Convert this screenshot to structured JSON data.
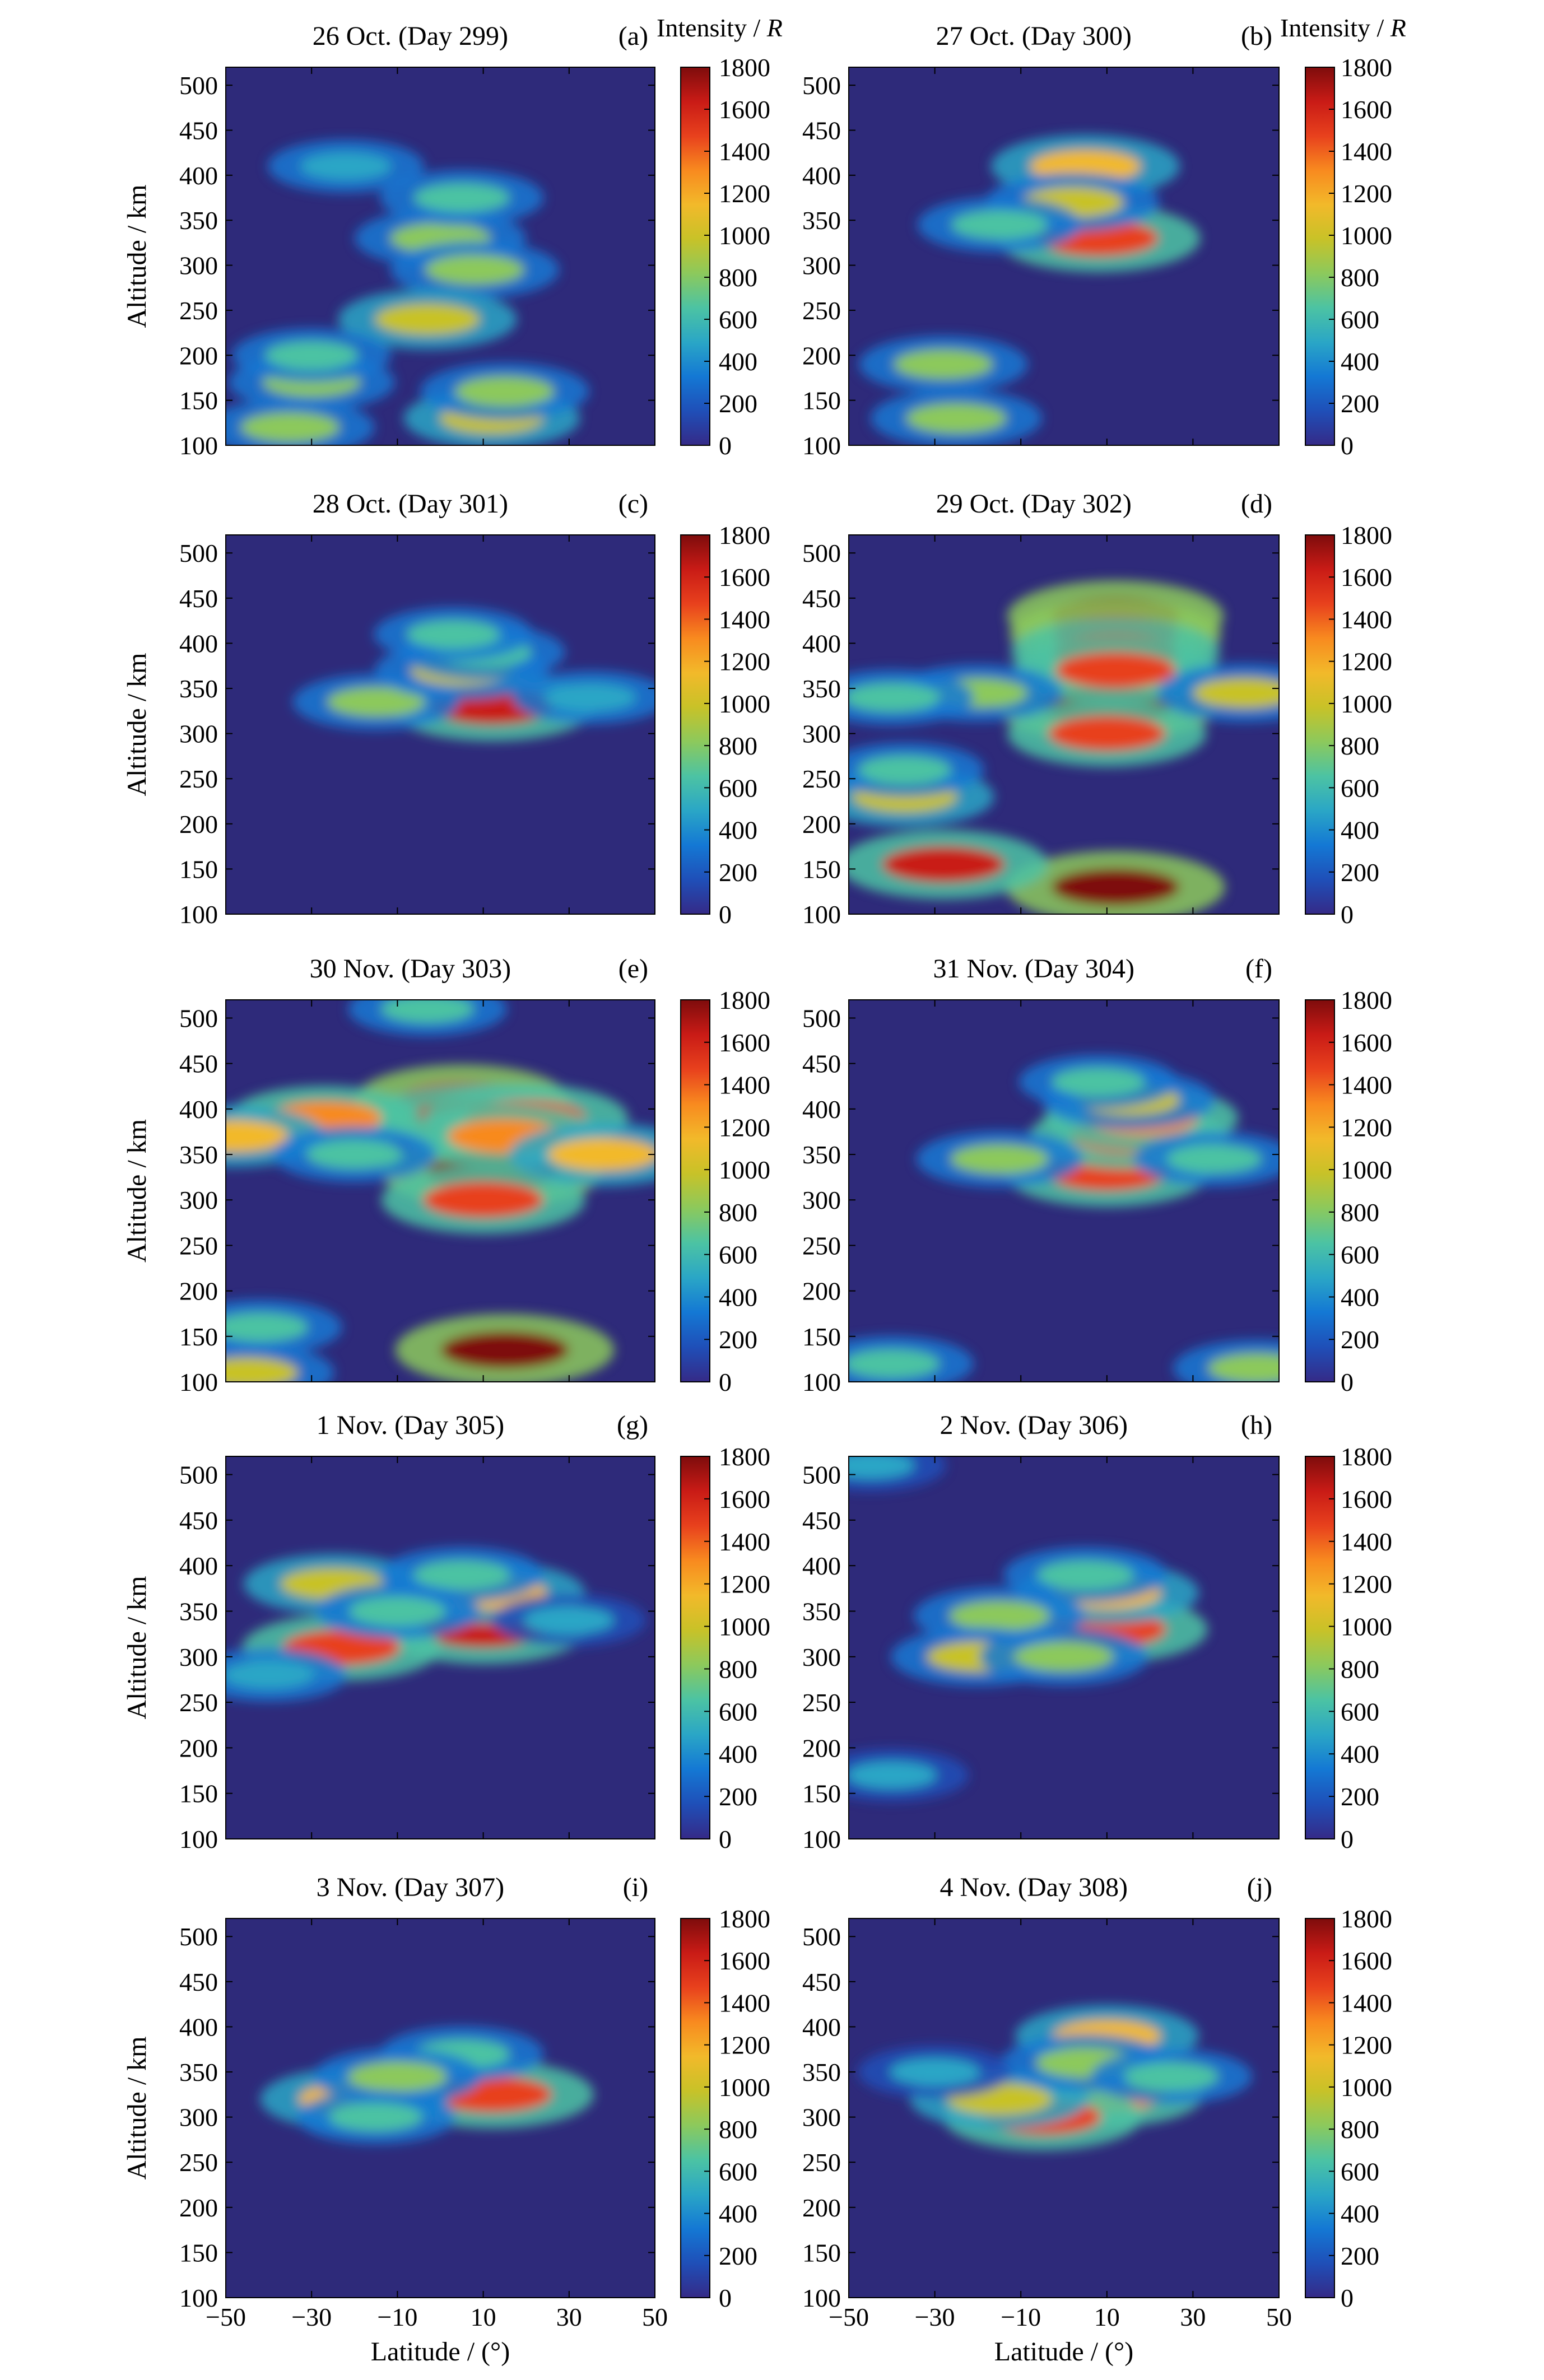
{
  "figure": {
    "colorbar_header": "Intensity / ",
    "colorbar_header_italic": "R",
    "ylabel": "Altitude / km",
    "xlabel": "Latitude / (°)",
    "colorbar_ticks": [
      "0",
      "200",
      "400",
      "600",
      "800",
      "1000",
      "1200",
      "1400",
      "1600",
      "1800"
    ],
    "colormap": [
      "#352a87",
      "#1f4fb8",
      "#1478d4",
      "#2aa6c6",
      "#4cc3a3",
      "#8cc95c",
      "#c8c228",
      "#f2b92a",
      "#f88a1f",
      "#e8411d",
      "#c91b16",
      "#7e0c0c"
    ],
    "background_color": "#2e2a7a"
  },
  "chart_data": [
    {
      "type": "heatmap",
      "panel_letter": "(a)",
      "title": "26 Oct. (Day 299)",
      "xlim": [
        -50,
        50
      ],
      "ylim": [
        100,
        520
      ],
      "xticks": [
        -50,
        -30,
        -10,
        10,
        30,
        50
      ],
      "yticks": [
        100,
        150,
        200,
        250,
        300,
        350,
        400,
        450,
        500
      ],
      "zlim": [
        0,
        1800
      ],
      "features": [
        {
          "lat": 0,
          "alt": 330,
          "intensity": 850
        },
        {
          "lat": 5,
          "alt": 375,
          "intensity": 700
        },
        {
          "lat": 8,
          "alt": 295,
          "intensity": 800
        },
        {
          "lat": -22,
          "alt": 410,
          "intensity": 550
        },
        {
          "lat": -3,
          "alt": 240,
          "intensity": 1000
        },
        {
          "lat": 12,
          "alt": 130,
          "intensity": 950
        },
        {
          "lat": 15,
          "alt": 160,
          "intensity": 800
        },
        {
          "lat": -30,
          "alt": 170,
          "intensity": 750
        },
        {
          "lat": -30,
          "alt": 200,
          "intensity": 600
        },
        {
          "lat": -35,
          "alt": 120,
          "intensity": 800
        }
      ]
    },
    {
      "type": "heatmap",
      "panel_letter": "(b)",
      "title": "27 Oct. (Day 300)",
      "xlim": [
        -50,
        50
      ],
      "ylim": [
        100,
        520
      ],
      "xticks": [
        -50,
        -30,
        -10,
        10,
        30,
        50
      ],
      "yticks": [
        100,
        150,
        200,
        250,
        300,
        350,
        400,
        450,
        500
      ],
      "zlim": [
        0,
        1800
      ],
      "features": [
        {
          "lat": 8,
          "alt": 330,
          "intensity": 1500
        },
        {
          "lat": 5,
          "alt": 410,
          "intensity": 1200
        },
        {
          "lat": 2,
          "alt": 370,
          "intensity": 900
        },
        {
          "lat": -15,
          "alt": 345,
          "intensity": 700
        },
        {
          "lat": -28,
          "alt": 190,
          "intensity": 800
        },
        {
          "lat": -25,
          "alt": 130,
          "intensity": 850
        }
      ]
    },
    {
      "type": "heatmap",
      "panel_letter": "(c)",
      "title": "28 Oct. (Day 301)",
      "xlim": [
        -50,
        50
      ],
      "ylim": [
        100,
        520
      ],
      "xticks": [
        -50,
        -30,
        -10,
        10,
        30,
        50
      ],
      "yticks": [
        100,
        150,
        200,
        250,
        300,
        350,
        400,
        450,
        500
      ],
      "zlim": [
        0,
        1800
      ],
      "features": [
        {
          "lat": 12,
          "alt": 330,
          "intensity": 1600
        },
        {
          "lat": -15,
          "alt": 335,
          "intensity": 750
        },
        {
          "lat": 5,
          "alt": 370,
          "intensity": 900
        },
        {
          "lat": 10,
          "alt": 390,
          "intensity": 700
        },
        {
          "lat": 3,
          "alt": 410,
          "intensity": 600
        },
        {
          "lat": 35,
          "alt": 340,
          "intensity": 550
        }
      ]
    },
    {
      "type": "heatmap",
      "panel_letter": "(d)",
      "title": "29 Oct. (Day 302)",
      "xlim": [
        -50,
        50
      ],
      "ylim": [
        100,
        520
      ],
      "xticks": [
        -50,
        -30,
        -10,
        10,
        30,
        50
      ],
      "yticks": [
        100,
        150,
        200,
        250,
        300,
        350,
        400,
        450,
        500
      ],
      "zlim": [
        0,
        1800
      ],
      "features": [
        {
          "lat": 10,
          "alt": 330,
          "intensity": 1800
        },
        {
          "lat": 12,
          "alt": 430,
          "intensity": 1750
        },
        {
          "lat": 12,
          "alt": 410,
          "intensity": 1650
        },
        {
          "lat": 12,
          "alt": 390,
          "intensity": 1600
        },
        {
          "lat": 12,
          "alt": 370,
          "intensity": 1500
        },
        {
          "lat": 10,
          "alt": 300,
          "intensity": 1400
        },
        {
          "lat": 12,
          "alt": 130,
          "intensity": 1800
        },
        {
          "lat": -28,
          "alt": 155,
          "intensity": 1600
        },
        {
          "lat": -20,
          "alt": 345,
          "intensity": 800
        },
        {
          "lat": -40,
          "alt": 340,
          "intensity": 700
        },
        {
          "lat": 42,
          "alt": 345,
          "intensity": 900
        },
        {
          "lat": -37,
          "alt": 230,
          "intensity": 1000
        },
        {
          "lat": -37,
          "alt": 260,
          "intensity": 600
        }
      ]
    },
    {
      "type": "heatmap",
      "panel_letter": "(e)",
      "title": "30 Nov. (Day 303)",
      "xlim": [
        -50,
        50
      ],
      "ylim": [
        100,
        520
      ],
      "xticks": [
        -50,
        -30,
        -10,
        10,
        30,
        50
      ],
      "yticks": [
        100,
        150,
        200,
        250,
        300,
        350,
        400,
        450,
        500
      ],
      "zlim": [
        0,
        1800
      ],
      "features": [
        {
          "lat": 12,
          "alt": 330,
          "intensity": 1800
        },
        {
          "lat": 5,
          "alt": 410,
          "intensity": 1700
        },
        {
          "lat": 8,
          "alt": 390,
          "intensity": 1600
        },
        {
          "lat": 20,
          "alt": 390,
          "intensity": 1500
        },
        {
          "lat": 15,
          "alt": 370,
          "intensity": 1300
        },
        {
          "lat": 10,
          "alt": 300,
          "intensity": 1500
        },
        {
          "lat": 15,
          "alt": 135,
          "intensity": 1800
        },
        {
          "lat": -27,
          "alt": 390,
          "intensity": 1300
        },
        {
          "lat": -48,
          "alt": 370,
          "intensity": 1100
        },
        {
          "lat": 38,
          "alt": 350,
          "intensity": 1200
        },
        {
          "lat": -20,
          "alt": 350,
          "intensity": 700
        },
        {
          "lat": -42,
          "alt": 160,
          "intensity": 700
        },
        {
          "lat": -45,
          "alt": 110,
          "intensity": 900
        },
        {
          "lat": -3,
          "alt": 510,
          "intensity": 600
        }
      ]
    },
    {
      "type": "heatmap",
      "panel_letter": "(f)",
      "title": "31 Nov. (Day 304)",
      "xlim": [
        -50,
        50
      ],
      "ylim": [
        100,
        520
      ],
      "xticks": [
        -50,
        -30,
        -10,
        10,
        30,
        50
      ],
      "yticks": [
        100,
        150,
        200,
        250,
        300,
        350,
        400,
        450,
        500
      ],
      "zlim": [
        0,
        1800
      ],
      "features": [
        {
          "lat": 10,
          "alt": 330,
          "intensity": 1550
        },
        {
          "lat": 15,
          "alt": 370,
          "intensity": 1400
        },
        {
          "lat": 18,
          "alt": 390,
          "intensity": 1300
        },
        {
          "lat": 15,
          "alt": 410,
          "intensity": 900
        },
        {
          "lat": 8,
          "alt": 430,
          "intensity": 600
        },
        {
          "lat": -15,
          "alt": 345,
          "intensity": 750
        },
        {
          "lat": 35,
          "alt": 345,
          "intensity": 650
        },
        {
          "lat": -40,
          "alt": 120,
          "intensity": 700
        },
        {
          "lat": 45,
          "alt": 115,
          "intensity": 800
        }
      ]
    },
    {
      "type": "heatmap",
      "panel_letter": "(g)",
      "title": "1 Nov. (Day 305)",
      "xlim": [
        -50,
        50
      ],
      "ylim": [
        100,
        520
      ],
      "xticks": [
        -50,
        -30,
        -10,
        10,
        30,
        50
      ],
      "yticks": [
        100,
        150,
        200,
        250,
        300,
        350,
        400,
        450,
        500
      ],
      "zlim": [
        0,
        1800
      ],
      "features": [
        {
          "lat": 10,
          "alt": 330,
          "intensity": 1600
        },
        {
          "lat": -23,
          "alt": 310,
          "intensity": 1400
        },
        {
          "lat": 12,
          "alt": 370,
          "intensity": 1150
        },
        {
          "lat": -25,
          "alt": 380,
          "intensity": 1000
        },
        {
          "lat": 5,
          "alt": 390,
          "intensity": 700
        },
        {
          "lat": -10,
          "alt": 350,
          "intensity": 700
        },
        {
          "lat": -40,
          "alt": 280,
          "intensity": 550
        },
        {
          "lat": 30,
          "alt": 340,
          "intensity": 500
        }
      ]
    },
    {
      "type": "heatmap",
      "panel_letter": "(h)",
      "title": "2 Nov. (Day 306)",
      "xlim": [
        -50,
        50
      ],
      "ylim": [
        100,
        520
      ],
      "xticks": [
        -50,
        -30,
        -10,
        10,
        30,
        50
      ],
      "yticks": [
        100,
        150,
        200,
        250,
        300,
        350,
        400,
        450,
        500
      ],
      "zlim": [
        0,
        1800
      ],
      "features": [
        {
          "lat": 10,
          "alt": 330,
          "intensity": 1450
        },
        {
          "lat": 10,
          "alt": 370,
          "intensity": 1100
        },
        {
          "lat": -15,
          "alt": 345,
          "intensity": 850
        },
        {
          "lat": 5,
          "alt": 390,
          "intensity": 700
        },
        {
          "lat": -20,
          "alt": 300,
          "intensity": 900
        },
        {
          "lat": 0,
          "alt": 300,
          "intensity": 800
        },
        {
          "lat": -45,
          "alt": 510,
          "intensity": 450
        },
        {
          "lat": -40,
          "alt": 170,
          "intensity": 500
        }
      ]
    },
    {
      "type": "heatmap",
      "panel_letter": "(i)",
      "title": "3 Nov. (Day 307)",
      "xlim": [
        -50,
        50
      ],
      "ylim": [
        100,
        520
      ],
      "xticks": [
        -50,
        -30,
        -10,
        10,
        30,
        50
      ],
      "yticks": [
        100,
        150,
        200,
        250,
        300,
        350,
        400,
        450,
        500
      ],
      "zlim": [
        0,
        1800
      ],
      "features": [
        {
          "lat": 12,
          "alt": 325,
          "intensity": 1500
        },
        {
          "lat": -20,
          "alt": 320,
          "intensity": 1200
        },
        {
          "lat": 5,
          "alt": 370,
          "intensity": 700
        },
        {
          "lat": -10,
          "alt": 345,
          "intensity": 800
        },
        {
          "lat": -15,
          "alt": 300,
          "intensity": 600
        }
      ]
    },
    {
      "type": "heatmap",
      "panel_letter": "(j)",
      "title": "4 Nov. (Day 308)",
      "xlim": [
        -50,
        50
      ],
      "ylim": [
        100,
        520
      ],
      "xticks": [
        -50,
        -30,
        -10,
        10,
        30,
        50
      ],
      "yticks": [
        100,
        150,
        200,
        250,
        300,
        350,
        400,
        450,
        500
      ],
      "zlim": [
        0,
        1800
      ],
      "features": [
        {
          "lat": 10,
          "alt": 325,
          "intensity": 1300
        },
        {
          "lat": 10,
          "alt": 390,
          "intensity": 1100
        },
        {
          "lat": -5,
          "alt": 300,
          "intensity": 1400
        },
        {
          "lat": -15,
          "alt": 320,
          "intensity": 1000
        },
        {
          "lat": 5,
          "alt": 360,
          "intensity": 800
        },
        {
          "lat": 25,
          "alt": 345,
          "intensity": 650
        },
        {
          "lat": -30,
          "alt": 350,
          "intensity": 500
        }
      ]
    }
  ]
}
